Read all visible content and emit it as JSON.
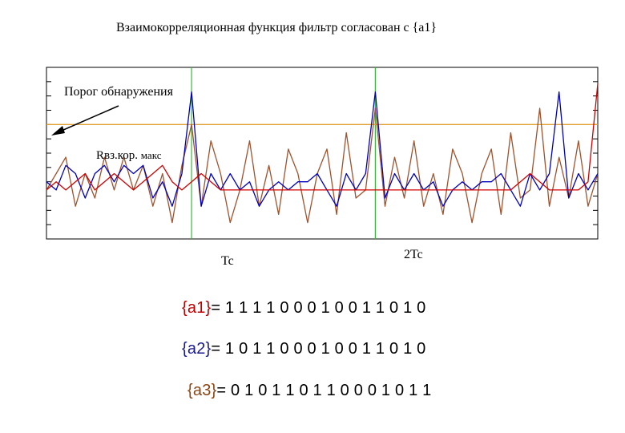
{
  "title": "Взаимокорреляционная функция фильтр согласован с {a1}",
  "annotations": {
    "threshold_label": "Порог обнаружения",
    "rmax_label_main": "Rвз.кор.",
    "rmax_label_small": "макс"
  },
  "sequences": [
    {
      "name": "{a1}",
      "value": "= 1 1 1 1 0 0 0 1 0 0 1 1 0 1 0",
      "color": "#c00000"
    },
    {
      "name": "{a2}",
      "value": "= 1 0 1 1 0 0 0 1 0 0 1 1 0 1 0",
      "color": "#1a1a8c"
    },
    {
      "name": "{a3}",
      "value": "= 0 1 0 1 1 0 1 1 0 0 0 1 0 1 1",
      "color": "#8b4513"
    }
  ],
  "chart_data": {
    "type": "line",
    "title": "Взаимокорреляционная функция фильтр согласован с {a1}",
    "xlabel": "",
    "ylabel": "",
    "x_tick_labels": [
      "Tc",
      "2Tc"
    ],
    "x_tick_positions": [
      15,
      34
    ],
    "xlim": [
      0,
      57
    ],
    "ylim": [
      -7,
      14
    ],
    "threshold": 7,
    "threshold_color": "#e0a030",
    "marker_lines_color": "#33bb33",
    "series": [
      {
        "color": "#d00000",
        "values": [
          -1,
          0,
          -1,
          0,
          1,
          -1,
          0,
          1,
          0,
          -1,
          0,
          1,
          2,
          0,
          -1,
          0,
          1,
          0,
          -1,
          -1,
          -1,
          -1,
          -1,
          -1,
          -1,
          -1,
          -1,
          -1,
          -1,
          -1,
          -1,
          -1,
          -1,
          -1,
          -1,
          -1,
          -1,
          -1,
          -1,
          -1,
          -1,
          -1,
          -1,
          -1,
          -1,
          -1,
          -1,
          -1,
          -1,
          0,
          1,
          0,
          -1,
          -1,
          -1,
          -1,
          0,
          12
        ]
      },
      {
        "color": "#0000bb",
        "values": [
          0,
          -1,
          2,
          1,
          -2,
          1,
          2,
          0,
          2,
          1,
          2,
          -2,
          0,
          -3,
          1,
          11,
          -3,
          1,
          -1,
          1,
          -1,
          0,
          -3,
          -1,
          0,
          -1,
          0,
          0,
          1,
          -1,
          -3,
          1,
          -1,
          1,
          11,
          -2,
          1,
          -1,
          1,
          -1,
          0,
          -3,
          -1,
          0,
          -1,
          0,
          0,
          1,
          -1,
          -3,
          1,
          -1,
          1,
          11,
          -2,
          1,
          -1,
          1
        ]
      },
      {
        "color": "#a0522d",
        "values": [
          -1,
          1,
          3,
          -3,
          1,
          -2,
          3,
          -1,
          3,
          -1,
          2,
          -3,
          1,
          -5,
          2,
          7,
          -3,
          5,
          1,
          -5,
          -1,
          5,
          -3,
          2,
          -4,
          4,
          1,
          -5,
          1,
          4,
          -4,
          6,
          -2,
          -1,
          9,
          -3,
          3,
          -2,
          5,
          -3,
          1,
          -4,
          4,
          1,
          -5,
          1,
          4,
          -4,
          6,
          -2,
          -1,
          9,
          -3,
          3,
          -2,
          5,
          -3,
          1
        ]
      }
    ]
  }
}
